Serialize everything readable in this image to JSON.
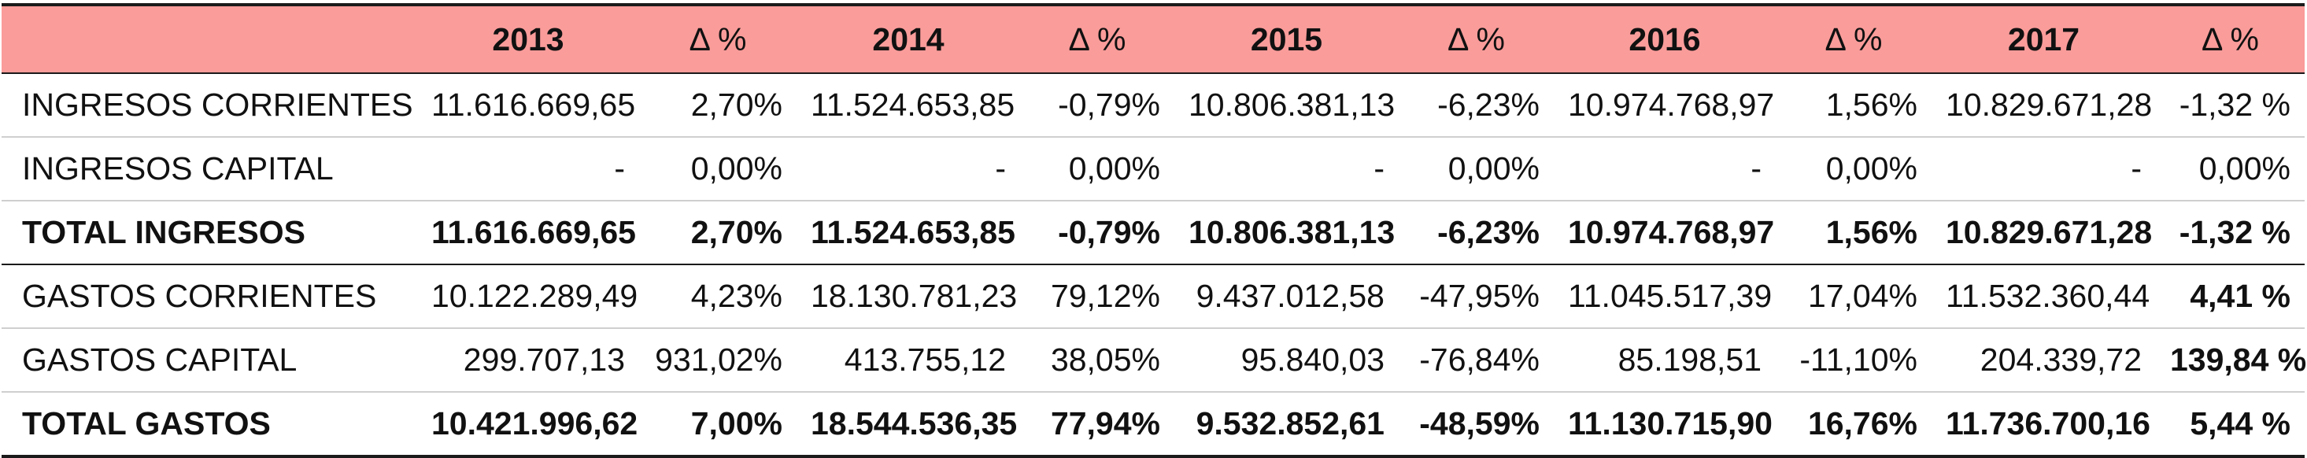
{
  "header": {
    "label": "",
    "years": [
      "2013",
      "2014",
      "2015",
      "2016",
      "2017"
    ],
    "delta": "Δ %"
  },
  "rows": [
    {
      "label": "INGRESOS CORRIENTES",
      "values": [
        "11.616.669,65",
        "2,70%",
        "11.524.653,85",
        "-0,79%",
        "10.806.381,13",
        "-6,23%",
        "10.974.768,97",
        "1,56%",
        "10.829.671,28",
        "-1,32 %"
      ]
    },
    {
      "label": "INGRESOS CAPITAL",
      "values": [
        "-",
        "0,00%",
        "-",
        "0,00%",
        "-",
        "0,00%",
        "-",
        "0,00%",
        "-",
        "0,00%"
      ]
    },
    {
      "label": "TOTAL INGRESOS",
      "values": [
        "11.616.669,65",
        "2,70%",
        "11.524.653,85",
        "-0,79%",
        "10.806.381,13",
        "-6,23%",
        "10.974.768,97",
        "1,56%",
        "10.829.671,28",
        "-1,32 %"
      ]
    },
    {
      "label": "GASTOS CORRIENTES",
      "values": [
        "10.122.289,49",
        "4,23%",
        "18.130.781,23",
        "79,12%",
        "9.437.012,58",
        "-47,95%",
        "11.045.517,39",
        "17,04%",
        "11.532.360,44",
        "4,41 %"
      ]
    },
    {
      "label": "GASTOS CAPITAL",
      "values": [
        "299.707,13",
        "931,02%",
        "413.755,12",
        "38,05%",
        "95.840,03",
        "-76,84%",
        "85.198,51",
        "-11,10%",
        "204.339,72",
        "139,84 %"
      ]
    },
    {
      "label": "TOTAL GASTOS",
      "values": [
        "10.421.996,62",
        "7,00%",
        "18.544.536,35",
        "77,94%",
        "9.532.852,61",
        "-48,59%",
        "11.130.715,90",
        "16,76%",
        "11.736.700,16",
        "5,44 %"
      ]
    }
  ]
}
